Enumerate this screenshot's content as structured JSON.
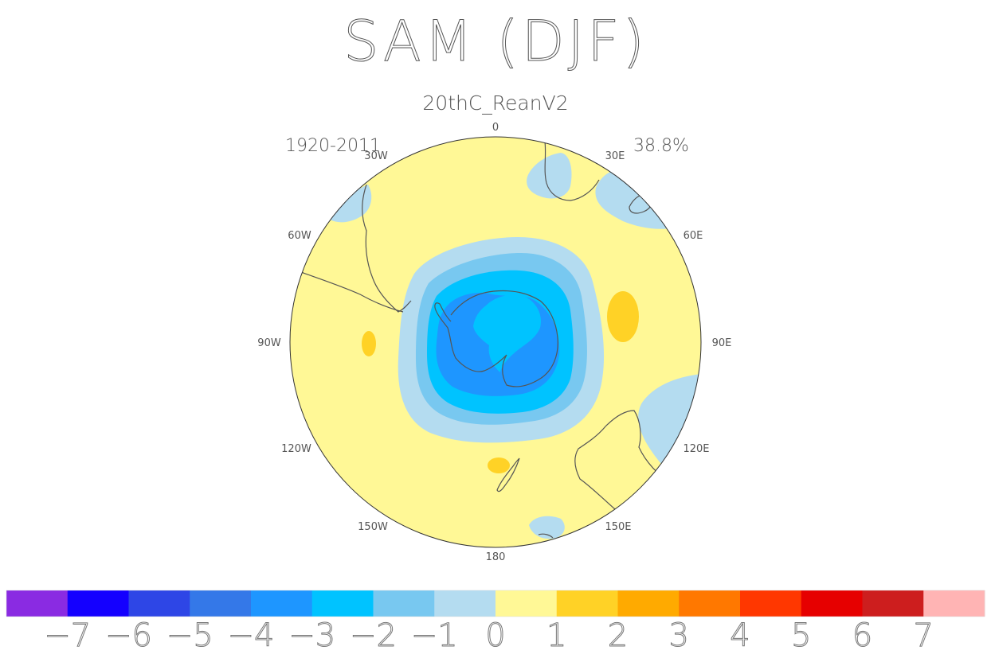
{
  "title": "SAM (DJF)",
  "subtitle": "20thC_ReanV2",
  "period": "1920-2011",
  "variance": "38.8%",
  "longitude_labels": [
    "0",
    "30E",
    "60E",
    "90E",
    "120E",
    "150E",
    "180",
    "150W",
    "120W",
    "90W",
    "60W",
    "30W"
  ],
  "colorbar": {
    "colors": [
      "#8a2be2",
      "#1400ff",
      "#2e46e6",
      "#3478e8",
      "#1e96ff",
      "#00c3ff",
      "#78c8f0",
      "#b4dcf0",
      "#fff896",
      "#ffd226",
      "#ffaa00",
      "#ff7800",
      "#ff3700",
      "#e60000",
      "#cd1e1e",
      "#ffb4b4"
    ],
    "labels": [
      "−7",
      "−6",
      "−5",
      "−4",
      "−3",
      "−2",
      "−1",
      "0",
      "1",
      "2",
      "3",
      "4",
      "5",
      "6",
      "7"
    ]
  },
  "fill_colors": {
    "neutral": "#fff896",
    "neg1": "#b4dcf0",
    "neg2": "#78c8f0",
    "neg3": "#00c3ff",
    "neg4": "#1e96ff",
    "pos1": "#ffd226",
    "coast": "#555555"
  }
}
